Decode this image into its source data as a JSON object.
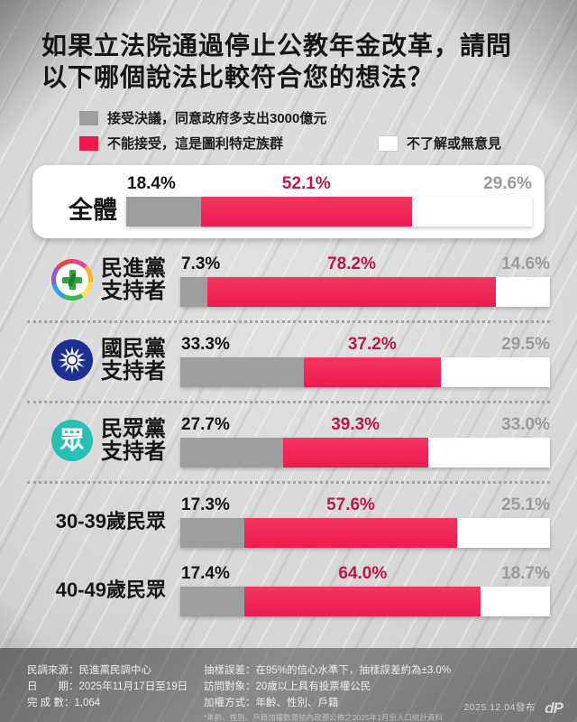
{
  "title": {
    "line1": "如果立法院通過停止公教年金改革，請問",
    "line2": "以下哪個說法比較符合您的想法？"
  },
  "legend": {
    "items": [
      {
        "label": "接受決議，同意政府多支出3000億元",
        "color": "#9e9ea0"
      },
      {
        "label": "不能接受，這是圖利特定族群",
        "color": "#ee1a4e"
      },
      {
        "label": "不了解或無意見",
        "color": "#ffffff"
      }
    ]
  },
  "chart_data": {
    "type": "bar",
    "stacked": true,
    "unit": "%",
    "title": "如果立法院通過停止公教年金改革，請問以下哪個說法比較符合您的想法？",
    "series_labels": [
      "接受決議，同意政府多支出3000億元",
      "不能接受，這是圖利特定族群",
      "不了解或無意見"
    ],
    "series_colors": [
      "#9e9ea0",
      "#ee1a4e",
      "#ffffff"
    ],
    "categories": [
      "全體",
      "民進黨支持者",
      "國民黨支持者",
      "民眾黨支持者",
      "30-39歲民眾",
      "40-49歲民眾"
    ],
    "rows": [
      {
        "label_lines": [
          "全體"
        ],
        "icon": "none",
        "card": true,
        "values": [
          18.4,
          52.1,
          29.6
        ],
        "display": [
          "18.4%",
          "52.1%",
          "29.6%"
        ]
      },
      {
        "label_lines": [
          "民進黨",
          "支持者"
        ],
        "icon": "dpp-logo-icon",
        "card": false,
        "values": [
          7.3,
          78.2,
          14.6
        ],
        "display": [
          "7.3%",
          "78.2%",
          "14.6%"
        ]
      },
      {
        "label_lines": [
          "國民黨",
          "支持者"
        ],
        "icon": "kmt-logo-icon",
        "card": false,
        "values": [
          33.3,
          37.2,
          29.5
        ],
        "display": [
          "33.3%",
          "37.2%",
          "29.5%"
        ]
      },
      {
        "label_lines": [
          "民眾黨",
          "支持者"
        ],
        "icon": "tpp-logo-icon",
        "card": false,
        "values": [
          27.7,
          39.3,
          33.0
        ],
        "display": [
          "27.7%",
          "39.3%",
          "33.0%"
        ]
      },
      {
        "label_lines": [
          "30-39歲民眾"
        ],
        "icon": "none",
        "card": false,
        "values": [
          17.3,
          57.6,
          25.1
        ],
        "display": [
          "17.3%",
          "57.6%",
          "25.1%"
        ]
      },
      {
        "label_lines": [
          "40-49歲民眾"
        ],
        "icon": "none",
        "card": false,
        "values": [
          17.4,
          64.0,
          18.7
        ],
        "display": [
          "17.4%",
          "64.0%",
          "18.7%"
        ]
      }
    ]
  },
  "footer": {
    "left": [
      "民調來源：民進黨民調中心",
      "日　　期：2025年11月17日至19日",
      "完 成 數：1,064"
    ],
    "right": [
      "抽樣誤差：在95%的信心水準下，抽樣誤差約為±3.0%",
      "訪問對象：20歲以上具有投票權公民",
      "加權方式：年齡、性別、戶籍"
    ],
    "note": "*年齡、性別、戶籍加權數是依內政部公佈之2025年1月份人口統計資料",
    "publish": "2025.12.04發布",
    "logo_text": "dP"
  },
  "colors": {
    "accent_red": "#ee1a4e",
    "red_value_text": "#bd1747",
    "bar_gray": "#9e9ea0",
    "gray_value_text": "#9a9a9a",
    "kmt_blue": "#1d2f91",
    "tpp_teal": "#29bfb3",
    "dpp_green": "#2ba93d"
  }
}
